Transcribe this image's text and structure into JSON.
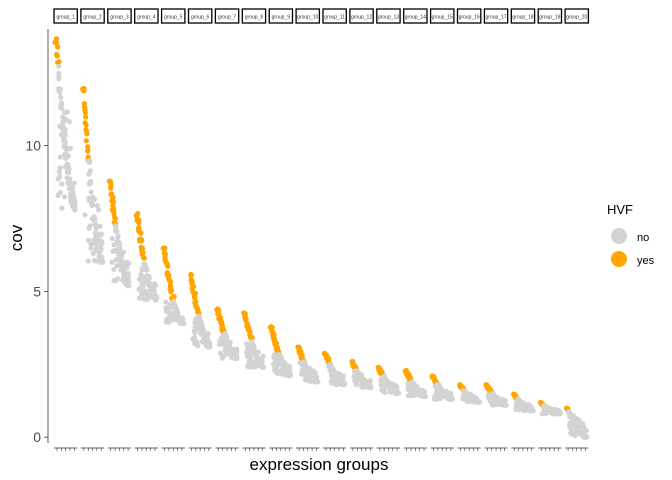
{
  "chart_data": {
    "type": "scatter",
    "title": "",
    "xlabel": "expression groups",
    "ylabel": "cov",
    "ylim": [
      -0.2,
      14.0
    ],
    "yticks": [
      0,
      5,
      10
    ],
    "grid": false,
    "facet_labels": [
      "group_1",
      "group_2",
      "group_3",
      "group_4",
      "group_5",
      "group_6",
      "group_7",
      "group_8",
      "group_9",
      "group_10",
      "group_11",
      "group_12",
      "group_13",
      "group_14",
      "group_15",
      "group_16",
      "group_17",
      "group_18",
      "group_19",
      "group_20"
    ],
    "legend": {
      "title": "HVF",
      "placement": "right",
      "entries": [
        {
          "label": "no",
          "color": "#d3d3d3"
        },
        {
          "label": "yes",
          "color": "#ffa500"
        }
      ]
    },
    "groups": [
      {
        "name": "group_1",
        "cov_min": 7.8,
        "cov_max": 13.7,
        "hvf_threshold": 12.8
      },
      {
        "name": "group_2",
        "cov_min": 6.0,
        "cov_max": 12.1,
        "hvf_threshold": 9.6
      },
      {
        "name": "group_3",
        "cov_min": 5.2,
        "cov_max": 8.9,
        "hvf_threshold": 7.3
      },
      {
        "name": "group_4",
        "cov_min": 4.7,
        "cov_max": 7.7,
        "hvf_threshold": 6.0
      },
      {
        "name": "group_5",
        "cov_min": 3.9,
        "cov_max": 6.5,
        "hvf_threshold": 4.7
      },
      {
        "name": "group_6",
        "cov_min": 3.1,
        "cov_max": 5.6,
        "hvf_threshold": 4.2
      },
      {
        "name": "group_7",
        "cov_min": 2.7,
        "cov_max": 4.4,
        "hvf_threshold": 3.6
      },
      {
        "name": "group_8",
        "cov_min": 2.4,
        "cov_max": 4.3,
        "hvf_threshold": 3.3
      },
      {
        "name": "group_9",
        "cov_min": 2.1,
        "cov_max": 3.8,
        "hvf_threshold": 2.9
      },
      {
        "name": "group_10",
        "cov_min": 1.9,
        "cov_max": 3.1,
        "hvf_threshold": 2.6
      },
      {
        "name": "group_11",
        "cov_min": 1.8,
        "cov_max": 2.9,
        "hvf_threshold": 2.5
      },
      {
        "name": "group_12",
        "cov_min": 1.7,
        "cov_max": 2.6,
        "hvf_threshold": 2.3
      },
      {
        "name": "group_13",
        "cov_min": 1.5,
        "cov_max": 2.4,
        "hvf_threshold": 2.1
      },
      {
        "name": "group_14",
        "cov_min": 1.4,
        "cov_max": 2.3,
        "hvf_threshold": 1.9
      },
      {
        "name": "group_15",
        "cov_min": 1.3,
        "cov_max": 2.1,
        "hvf_threshold": 1.8
      },
      {
        "name": "group_16",
        "cov_min": 1.2,
        "cov_max": 1.8,
        "hvf_threshold": 1.6
      },
      {
        "name": "group_17",
        "cov_min": 1.1,
        "cov_max": 1.8,
        "hvf_threshold": 1.5
      },
      {
        "name": "group_18",
        "cov_min": 0.9,
        "cov_max": 1.5,
        "hvf_threshold": 1.3
      },
      {
        "name": "group_19",
        "cov_min": 0.8,
        "cov_max": 1.2,
        "hvf_threshold": 1.1
      },
      {
        "name": "group_20",
        "cov_min": 0.0,
        "cov_max": 1.0,
        "hvf_threshold": 0.9
      }
    ]
  }
}
